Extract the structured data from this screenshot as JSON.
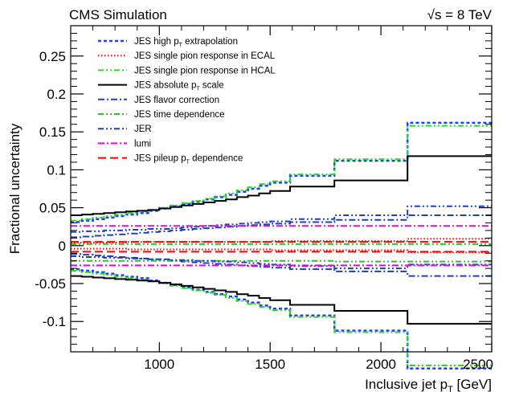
{
  "header": {
    "left": "CMS Simulation",
    "right": "√s = 8 TeV"
  },
  "chart_data": {
    "type": "line",
    "step": true,
    "xlabel": "Inclusive jet pT [GeV]",
    "ylabel": "Fractional uncertainty",
    "xlim": [
      600,
      2500
    ],
    "ylim": [
      -0.14,
      0.29
    ],
    "xticks": [
      1000,
      1500,
      2000,
      2500
    ],
    "yticks": [
      -0.1,
      -0.05,
      0,
      0.05,
      0.1,
      0.15,
      0.2,
      0.25
    ],
    "xtick_labels": [
      "1000",
      "1500",
      "2000",
      "2500"
    ],
    "ytick_labels": [
      "-0.1",
      "-0.05",
      "0",
      "0.05",
      "0.1",
      "0.15",
      "0.2",
      "0.25"
    ],
    "legend_position": "top-left",
    "bin_edges": [
      600,
      650,
      700,
      750,
      800,
      850,
      900,
      950,
      1000,
      1050,
      1100,
      1150,
      1200,
      1250,
      1300,
      1350,
      1400,
      1450,
      1500,
      1590,
      1790,
      2120,
      2500
    ],
    "series": [
      {
        "name": "JES high pT extrapolation",
        "color": "#1f3fff",
        "dash": "short-dash",
        "width": 2.5,
        "up": [
          0.031,
          0.033,
          0.035,
          0.037,
          0.039,
          0.041,
          0.043,
          0.046,
          0.049,
          0.052,
          0.055,
          0.058,
          0.061,
          0.064,
          0.067,
          0.071,
          0.075,
          0.079,
          0.083,
          0.092,
          0.112,
          0.162
        ],
        "down": [
          -0.031,
          -0.033,
          -0.035,
          -0.037,
          -0.039,
          -0.041,
          -0.043,
          -0.046,
          -0.049,
          -0.052,
          -0.055,
          -0.058,
          -0.061,
          -0.064,
          -0.067,
          -0.071,
          -0.075,
          -0.079,
          -0.083,
          -0.092,
          -0.112,
          -0.162
        ]
      },
      {
        "name": "JES single pion response in ECAL",
        "color": "#ff0000",
        "dash": "dot",
        "width": 2,
        "up": [
          0.004,
          0.004,
          0.004,
          0.004,
          0.004,
          0.005,
          0.005,
          0.005,
          0.005,
          0.005,
          0.005,
          0.005,
          0.005,
          0.005,
          0.005,
          0.005,
          0.005,
          0.005,
          0.006,
          0.006,
          0.006,
          0.009
        ],
        "down": [
          -0.004,
          -0.004,
          -0.004,
          -0.004,
          -0.004,
          -0.005,
          -0.005,
          -0.005,
          -0.005,
          -0.005,
          -0.005,
          -0.005,
          -0.005,
          -0.005,
          -0.005,
          -0.005,
          -0.005,
          -0.005,
          -0.006,
          -0.006,
          -0.006,
          -0.009
        ]
      },
      {
        "name": "JES single pion response in HCAL",
        "color": "#22dd22",
        "dash": "dash-dot-dot",
        "width": 2,
        "up": [
          0.033,
          0.035,
          0.037,
          0.039,
          0.041,
          0.043,
          0.045,
          0.047,
          0.05,
          0.053,
          0.056,
          0.059,
          0.062,
          0.065,
          0.069,
          0.073,
          0.077,
          0.081,
          0.085,
          0.094,
          0.114,
          0.158
        ],
        "down": [
          -0.033,
          -0.035,
          -0.037,
          -0.039,
          -0.041,
          -0.043,
          -0.045,
          -0.047,
          -0.05,
          -0.053,
          -0.056,
          -0.059,
          -0.062,
          -0.065,
          -0.069,
          -0.073,
          -0.077,
          -0.081,
          -0.085,
          -0.094,
          -0.114,
          -0.158
        ]
      },
      {
        "name": "JES absolute pT scale",
        "color": "#000000",
        "dash": "solid",
        "width": 2,
        "up": [
          0.04,
          0.041,
          0.042,
          0.043,
          0.044,
          0.045,
          0.046,
          0.047,
          0.049,
          0.051,
          0.053,
          0.055,
          0.057,
          0.059,
          0.061,
          0.064,
          0.066,
          0.069,
          0.072,
          0.078,
          0.086,
          0.118
        ],
        "down": [
          -0.04,
          -0.041,
          -0.042,
          -0.043,
          -0.044,
          -0.045,
          -0.046,
          -0.047,
          -0.049,
          -0.051,
          -0.053,
          -0.055,
          -0.057,
          -0.059,
          -0.061,
          -0.064,
          -0.066,
          -0.069,
          -0.072,
          -0.078,
          -0.086,
          -0.103
        ]
      },
      {
        "name": "JES flavor correction",
        "color": "#1f3fbf",
        "dash": "dash-dot",
        "width": 2,
        "up": [
          0.011,
          0.012,
          0.013,
          0.014,
          0.015,
          0.016,
          0.017,
          0.018,
          0.019,
          0.02,
          0.021,
          0.022,
          0.023,
          0.024,
          0.025,
          0.026,
          0.027,
          0.028,
          0.029,
          0.031,
          0.034,
          0.04
        ],
        "down": [
          -0.011,
          -0.012,
          -0.013,
          -0.014,
          -0.015,
          -0.016,
          -0.017,
          -0.018,
          -0.019,
          -0.02,
          -0.021,
          -0.022,
          -0.023,
          -0.024,
          -0.025,
          -0.026,
          -0.027,
          -0.028,
          -0.029,
          -0.031,
          -0.034,
          -0.04
        ]
      },
      {
        "name": "JES time dependence",
        "color": "#33bb33",
        "dash": "dash-dot-dot",
        "width": 2,
        "up": [
          0.002,
          0.002,
          0.002,
          0.002,
          0.002,
          0.002,
          0.002,
          0.002,
          0.002,
          0.002,
          0.002,
          0.002,
          0.002,
          0.002,
          0.002,
          0.002,
          0.002,
          0.002,
          0.002,
          0.002,
          0.002,
          0.002
        ],
        "down": [
          -0.02,
          -0.02,
          -0.02,
          -0.02,
          -0.02,
          -0.02,
          -0.02,
          -0.02,
          -0.02,
          -0.02,
          -0.02,
          -0.02,
          -0.02,
          -0.02,
          -0.02,
          -0.02,
          -0.02,
          -0.02,
          -0.02,
          -0.02,
          -0.021,
          -0.021
        ]
      },
      {
        "name": "JER",
        "color": "#1f3fbf",
        "dash": "dash-dot-dot",
        "width": 2,
        "up": [
          0.018,
          0.019,
          0.019,
          0.02,
          0.02,
          0.021,
          0.021,
          0.022,
          0.022,
          0.023,
          0.024,
          0.025,
          0.026,
          0.027,
          0.028,
          0.029,
          0.03,
          0.031,
          0.032,
          0.035,
          0.04,
          0.052
        ],
        "down": [
          -0.014,
          -0.015,
          -0.015,
          -0.016,
          -0.016,
          -0.017,
          -0.017,
          -0.018,
          -0.018,
          -0.019,
          -0.019,
          -0.02,
          -0.02,
          -0.021,
          -0.021,
          -0.022,
          -0.023,
          -0.024,
          -0.025,
          -0.027,
          -0.03,
          -0.025
        ]
      },
      {
        "name": "lumi",
        "color": "#ee00ee",
        "dash": "dash-dot",
        "width": 2,
        "up": [
          0.026,
          0.026,
          0.026,
          0.026,
          0.026,
          0.026,
          0.026,
          0.026,
          0.026,
          0.026,
          0.026,
          0.026,
          0.026,
          0.026,
          0.026,
          0.026,
          0.026,
          0.026,
          0.026,
          0.026,
          0.026,
          0.026
        ],
        "down": [
          -0.026,
          -0.026,
          -0.026,
          -0.026,
          -0.026,
          -0.026,
          -0.026,
          -0.026,
          -0.026,
          -0.026,
          -0.026,
          -0.026,
          -0.026,
          -0.026,
          -0.026,
          -0.026,
          -0.026,
          -0.026,
          -0.026,
          -0.026,
          -0.026,
          -0.026
        ]
      },
      {
        "name": "JES pileup pT dependence",
        "color": "#ff0000",
        "dash": "long-dash",
        "width": 2,
        "up": [
          0.005,
          0.005,
          0.005,
          0.005,
          0.005,
          0.005,
          0.005,
          0.005,
          0.005,
          0.005,
          0.005,
          0.005,
          0.005,
          0.005,
          0.005,
          0.005,
          0.005,
          0.005,
          0.005,
          0.005,
          0.005,
          0.005
        ],
        "down": [
          -0.008,
          -0.008,
          -0.008,
          -0.008,
          -0.008,
          -0.008,
          -0.008,
          -0.008,
          -0.008,
          -0.008,
          -0.008,
          -0.008,
          -0.008,
          -0.008,
          -0.008,
          -0.008,
          -0.008,
          -0.008,
          -0.008,
          -0.008,
          -0.008,
          -0.008
        ]
      }
    ]
  }
}
